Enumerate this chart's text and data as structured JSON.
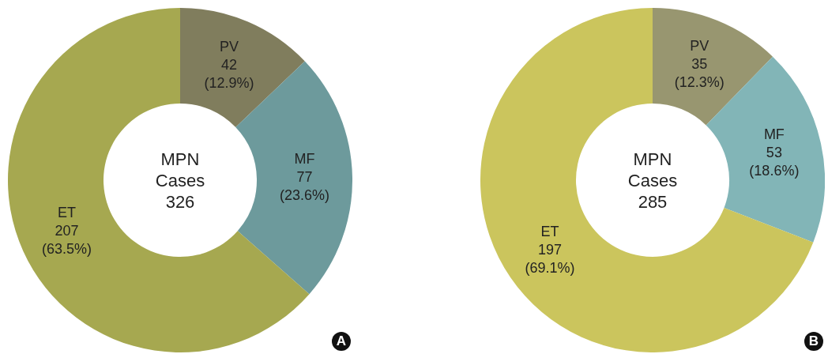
{
  "chart_data": [
    {
      "type": "donut",
      "categories": [
        "PV",
        "MF",
        "ET"
      ],
      "values": [
        42,
        77,
        207
      ],
      "colors": [
        "#807d5d",
        "#6d9a9c",
        "#a6a850"
      ],
      "value_labels": [
        "42 (12.9%)",
        "77 (23.6%)",
        "207 (63.5%)"
      ],
      "annotations": [
        "MPN Cases 326",
        "A"
      ]
    },
    {
      "type": "donut",
      "categories": [
        "PV",
        "MF",
        "ET"
      ],
      "values": [
        35,
        53,
        197
      ],
      "colors": [
        "#989670",
        "#82b5b7",
        "#cbc55d"
      ],
      "value_labels": [
        "35 (12.3%)",
        "53 (18.6%)",
        "197 (69.1%)"
      ],
      "annotations": [
        "MPN Cases 285",
        "B"
      ]
    }
  ]
}
